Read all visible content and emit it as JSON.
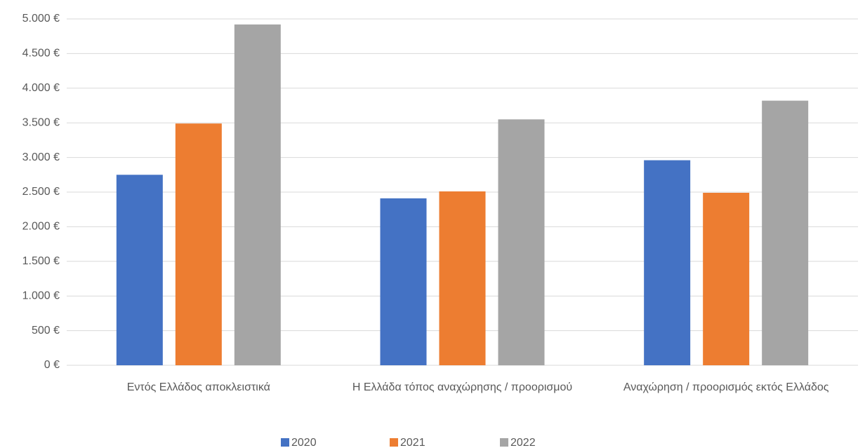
{
  "chart_data": {
    "type": "bar",
    "categories": [
      "Εντός Ελλάδος αποκλειστικά",
      "Η Ελλάδα τόπος αναχώρησης / προορισμού",
      "Αναχώρηση / προορισμός εκτός Ελλάδος"
    ],
    "series": [
      {
        "name": "2020",
        "color": "#4472c4",
        "values": [
          2750,
          2410,
          2960
        ]
      },
      {
        "name": "2021",
        "color": "#ed7d31",
        "values": [
          3490,
          2510,
          2490
        ]
      },
      {
        "name": "2022",
        "color": "#a5a5a5",
        "values": [
          4920,
          3550,
          3820
        ]
      }
    ],
    "ylim": [
      0,
      5000
    ],
    "yticks": [
      {
        "value": 0,
        "label": "0 €"
      },
      {
        "value": 500,
        "label": "500 €"
      },
      {
        "value": 1000,
        "label": "1.000 €"
      },
      {
        "value": 1500,
        "label": "1.500 €"
      },
      {
        "value": 2000,
        "label": "2.000 €"
      },
      {
        "value": 2500,
        "label": "2.500 €"
      },
      {
        "value": 3000,
        "label": "3.000 €"
      },
      {
        "value": 3500,
        "label": "3.500 €"
      },
      {
        "value": 4000,
        "label": "4.000 €"
      },
      {
        "value": 4500,
        "label": "4.500 €"
      },
      {
        "value": 5000,
        "label": "5.000 €"
      }
    ],
    "grid": true,
    "legend": "bottom"
  }
}
